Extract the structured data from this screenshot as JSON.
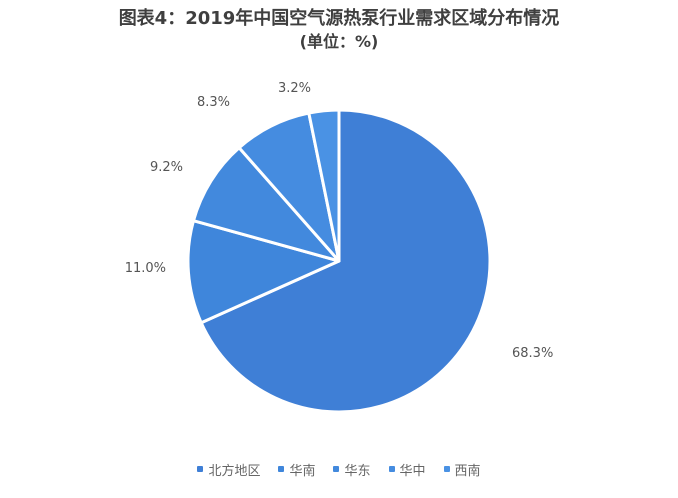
{
  "chart_data": {
    "type": "pie",
    "title": "图表4：2019年中国空气源热泵行业需求区域分布情况",
    "subtitle": "(单位：%)",
    "categories": [
      "北方地区",
      "华南",
      "华东",
      "华中",
      "西南"
    ],
    "values": [
      68.3,
      11.0,
      9.2,
      8.3,
      3.2
    ],
    "value_labels": [
      "68.3%",
      "11.0%",
      "9.2%",
      "8.3%",
      "3.2%"
    ],
    "colors": [
      "#3F7FD6",
      "#3F7FD6",
      "#3F7FD6",
      "#3F7FD6",
      "#3F7FD6"
    ],
    "legend": "bottom"
  }
}
